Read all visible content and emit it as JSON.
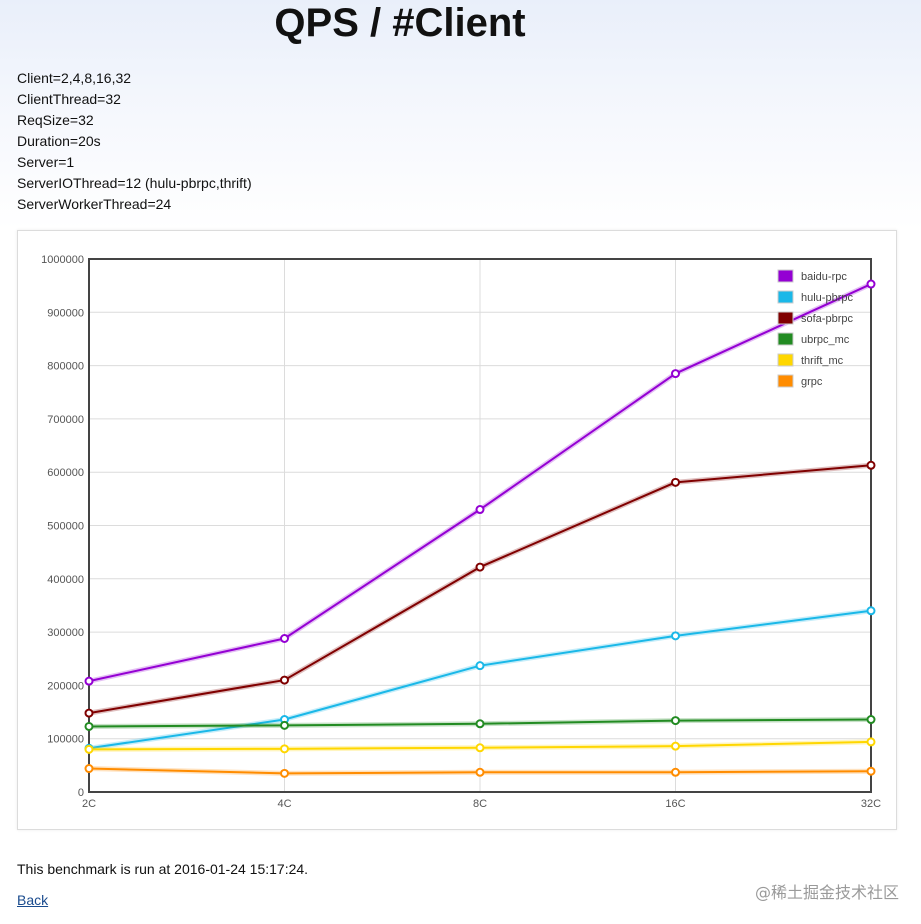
{
  "page": {
    "title": "QPS / #Client",
    "params": [
      "Client=2,4,8,16,32",
      "ClientThread=32",
      "ReqSize=32",
      "Duration=20s",
      "Server=1",
      "ServerIOThread=12 (hulu-pbrpc,thrift)",
      "ServerWorkerThread=24"
    ],
    "footer": "This benchmark is run at 2016-01-24 15:17:24.",
    "back_label": "Back",
    "watermark": "@稀土掘金技术社区"
  },
  "chart_data": {
    "type": "line",
    "title": "",
    "xlabel": "",
    "ylabel": "",
    "categories": [
      "2C",
      "4C",
      "8C",
      "16C",
      "32C"
    ],
    "ylim": [
      0,
      1000000
    ],
    "yticks": [
      0,
      100000,
      200000,
      300000,
      400000,
      500000,
      600000,
      700000,
      800000,
      900000,
      1000000
    ],
    "grid": true,
    "legend_position": "top-right",
    "series": [
      {
        "name": "baidu-rpc",
        "color": "#9400d3",
        "values": [
          208000,
          288000,
          530000,
          785000,
          953000
        ]
      },
      {
        "name": "hulu-pbrpc",
        "color": "#1ab8e8",
        "values": [
          82000,
          136000,
          237000,
          293000,
          340000
        ]
      },
      {
        "name": "sofa-pbrpc",
        "color": "#800000",
        "values": [
          148000,
          210000,
          422000,
          581000,
          613000
        ]
      },
      {
        "name": "ubrpc_mc",
        "color": "#228b22",
        "values": [
          123000,
          125000,
          128000,
          134000,
          136000
        ]
      },
      {
        "name": "thrift_mc",
        "color": "#ffd700",
        "values": [
          80000,
          81000,
          83000,
          86000,
          94000
        ]
      },
      {
        "name": "grpc",
        "color": "#ff8c00",
        "values": [
          44000,
          35000,
          37000,
          37000,
          39000
        ]
      }
    ]
  }
}
